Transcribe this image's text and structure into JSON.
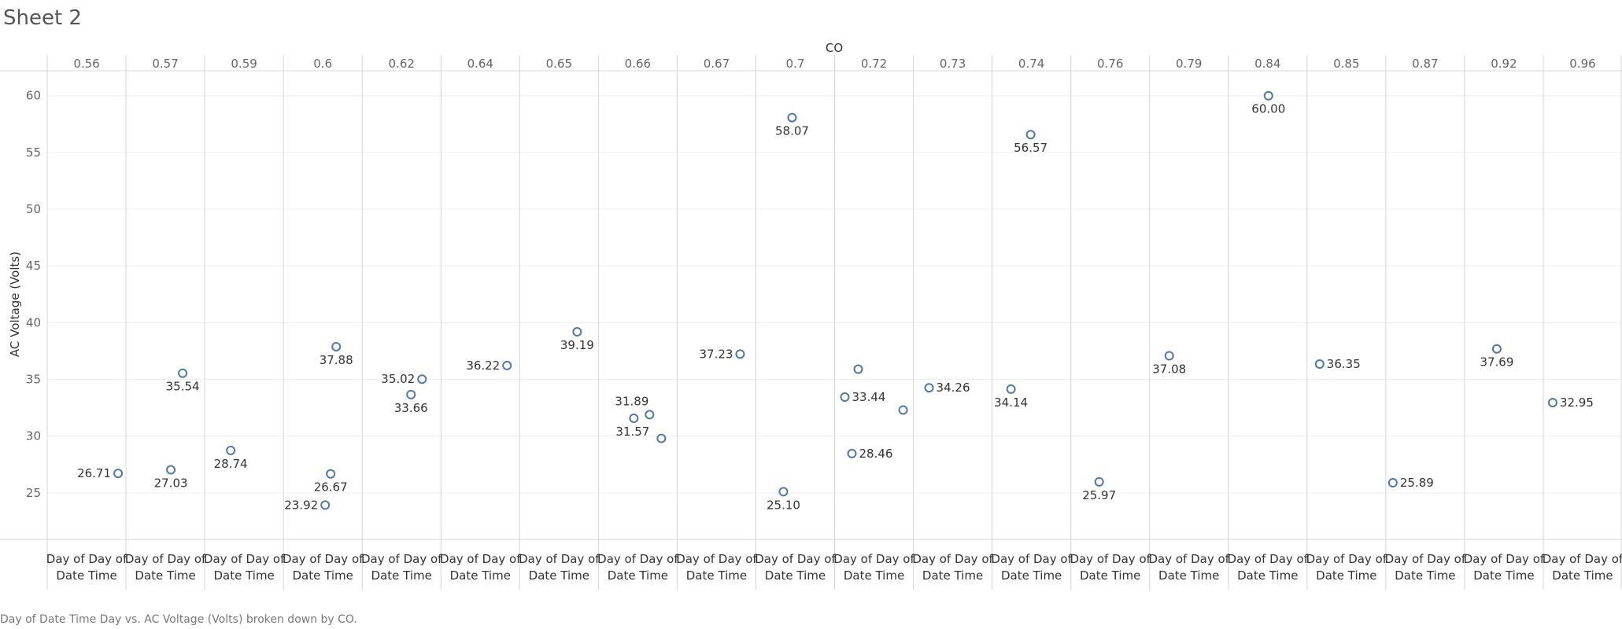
{
  "sheet": {
    "title": "Sheet 2",
    "caption": "Day of Date Time Day vs. AC Voltage (Volts) broken down by CO."
  },
  "chart_data": {
    "type": "scatter",
    "column_field": "CO",
    "ylabel": "AC Voltage (Volts)",
    "x_axis_label": "Day of Day of Date Time",
    "ylim": [
      20.9,
      62.2
    ],
    "yticks": [
      25,
      30,
      35,
      40,
      45,
      50,
      55,
      60
    ],
    "grid": true,
    "marker_color": "#4e79a7",
    "panels": [
      {
        "co": "0.56",
        "points": [
          {
            "x": 0.9,
            "y": 26.71,
            "label": "26.71",
            "pos": "left"
          }
        ]
      },
      {
        "co": "0.57",
        "points": [
          {
            "x": 0.57,
            "y": 27.03,
            "label": "27.03",
            "pos": "below"
          },
          {
            "x": 0.72,
            "y": 35.54,
            "label": "35.54",
            "pos": "below"
          }
        ]
      },
      {
        "co": "0.59",
        "points": [
          {
            "x": 0.33,
            "y": 28.74,
            "label": "28.74",
            "pos": "below"
          }
        ]
      },
      {
        "co": "0.6",
        "points": [
          {
            "x": 0.53,
            "y": 23.92,
            "label": "23.92",
            "pos": "left"
          },
          {
            "x": 0.6,
            "y": 26.67,
            "label": "26.67",
            "pos": "below"
          },
          {
            "x": 0.67,
            "y": 37.88,
            "label": "37.88",
            "pos": "below"
          }
        ]
      },
      {
        "co": "0.62",
        "points": [
          {
            "x": 0.62,
            "y": 33.66,
            "label": "33.66",
            "pos": "below"
          },
          {
            "x": 0.76,
            "y": 35.02,
            "label": "35.02",
            "pos": "left"
          }
        ]
      },
      {
        "co": "0.64",
        "points": [
          {
            "x": 0.84,
            "y": 36.22,
            "label": "36.22",
            "pos": "left"
          }
        ]
      },
      {
        "co": "0.65",
        "points": [
          {
            "x": 0.73,
            "y": 39.19,
            "label": "39.19",
            "pos": "below"
          }
        ]
      },
      {
        "co": "0.66",
        "points": [
          {
            "x": 0.45,
            "y": 31.57,
            "label": "31.57",
            "pos": "below-left"
          },
          {
            "x": 0.65,
            "y": 31.89,
            "label": "31.89",
            "pos": "above-left"
          },
          {
            "x": 0.8,
            "y": 29.8,
            "label": "",
            "pos": "none"
          }
        ]
      },
      {
        "co": "0.67",
        "points": [
          {
            "x": 0.8,
            "y": 37.23,
            "label": "37.23",
            "pos": "left"
          }
        ]
      },
      {
        "co": "0.7",
        "points": [
          {
            "x": 0.35,
            "y": 25.1,
            "label": "25.10",
            "pos": "below"
          },
          {
            "x": 0.46,
            "y": 58.07,
            "label": "58.07",
            "pos": "below"
          }
        ]
      },
      {
        "co": "0.72",
        "points": [
          {
            "x": 0.13,
            "y": 33.44,
            "label": "33.44",
            "pos": "right"
          },
          {
            "x": 0.22,
            "y": 28.46,
            "label": "28.46",
            "pos": "right"
          },
          {
            "x": 0.3,
            "y": 35.9,
            "label": "",
            "pos": "none"
          },
          {
            "x": 0.87,
            "y": 32.3,
            "label": "",
            "pos": "none"
          }
        ]
      },
      {
        "co": "0.73",
        "points": [
          {
            "x": 0.2,
            "y": 34.26,
            "label": "34.26",
            "pos": "right"
          }
        ]
      },
      {
        "co": "0.74",
        "points": [
          {
            "x": 0.24,
            "y": 34.14,
            "label": "34.14",
            "pos": "below"
          },
          {
            "x": 0.49,
            "y": 56.57,
            "label": "56.57",
            "pos": "below"
          }
        ]
      },
      {
        "co": "0.76",
        "points": [
          {
            "x": 0.36,
            "y": 25.97,
            "label": "25.97",
            "pos": "below"
          }
        ]
      },
      {
        "co": "0.79",
        "points": [
          {
            "x": 0.25,
            "y": 37.08,
            "label": "37.08",
            "pos": "below"
          }
        ]
      },
      {
        "co": "0.84",
        "points": [
          {
            "x": 0.51,
            "y": 60.0,
            "label": "60.00",
            "pos": "below"
          }
        ]
      },
      {
        "co": "0.85",
        "points": [
          {
            "x": 0.16,
            "y": 36.35,
            "label": "36.35",
            "pos": "right"
          }
        ]
      },
      {
        "co": "0.87",
        "points": [
          {
            "x": 0.09,
            "y": 25.89,
            "label": "25.89",
            "pos": "right"
          }
        ]
      },
      {
        "co": "0.92",
        "points": [
          {
            "x": 0.41,
            "y": 37.69,
            "label": "37.69",
            "pos": "below"
          }
        ]
      },
      {
        "co": "0.96",
        "points": [
          {
            "x": 0.12,
            "y": 32.95,
            "label": "32.95",
            "pos": "right"
          }
        ]
      }
    ]
  }
}
